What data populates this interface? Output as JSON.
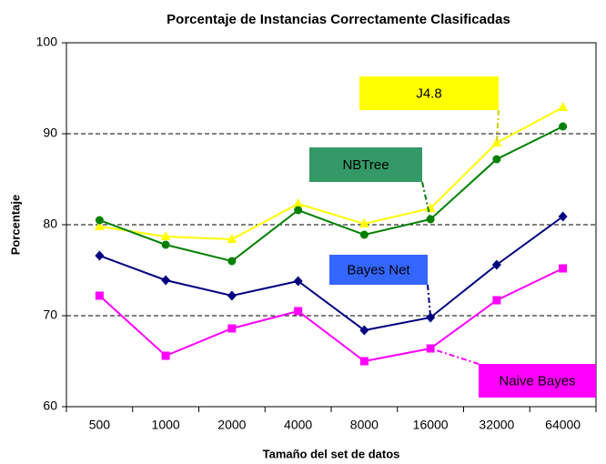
{
  "chart_data": {
    "type": "line",
    "title": "Porcentaje de Instancias Correctamente Clasificadas",
    "x_label": "Tamaño del set de datos",
    "y_label": "Porcentaje",
    "categories": [
      "500",
      "1000",
      "2000",
      "4000",
      "8000",
      "16000",
      "32000",
      "64000"
    ],
    "ylim": [
      60,
      100
    ],
    "yticks": [
      60,
      70,
      80,
      90,
      100
    ],
    "grid": true,
    "series": [
      {
        "name": "J4.8",
        "color": "#ffff00",
        "marker": "triangle",
        "values": [
          79.8,
          78.7,
          78.4,
          82.3,
          80.1,
          81.8,
          89.0,
          92.9
        ]
      },
      {
        "name": "NBTree",
        "color": "#008000",
        "marker": "circle",
        "values": [
          80.5,
          77.8,
          76.0,
          81.6,
          78.9,
          80.6,
          87.2,
          90.8
        ]
      },
      {
        "name": "Bayes Net",
        "color": "#000080",
        "marker": "diamond",
        "values": [
          76.6,
          73.9,
          72.2,
          73.8,
          68.4,
          69.8,
          75.6,
          80.9
        ]
      },
      {
        "name": "Naive Bayes",
        "color": "#ff00ff",
        "marker": "square",
        "values": [
          72.2,
          65.6,
          68.6,
          70.5,
          65.0,
          66.4,
          71.7,
          75.2
        ]
      }
    ]
  }
}
